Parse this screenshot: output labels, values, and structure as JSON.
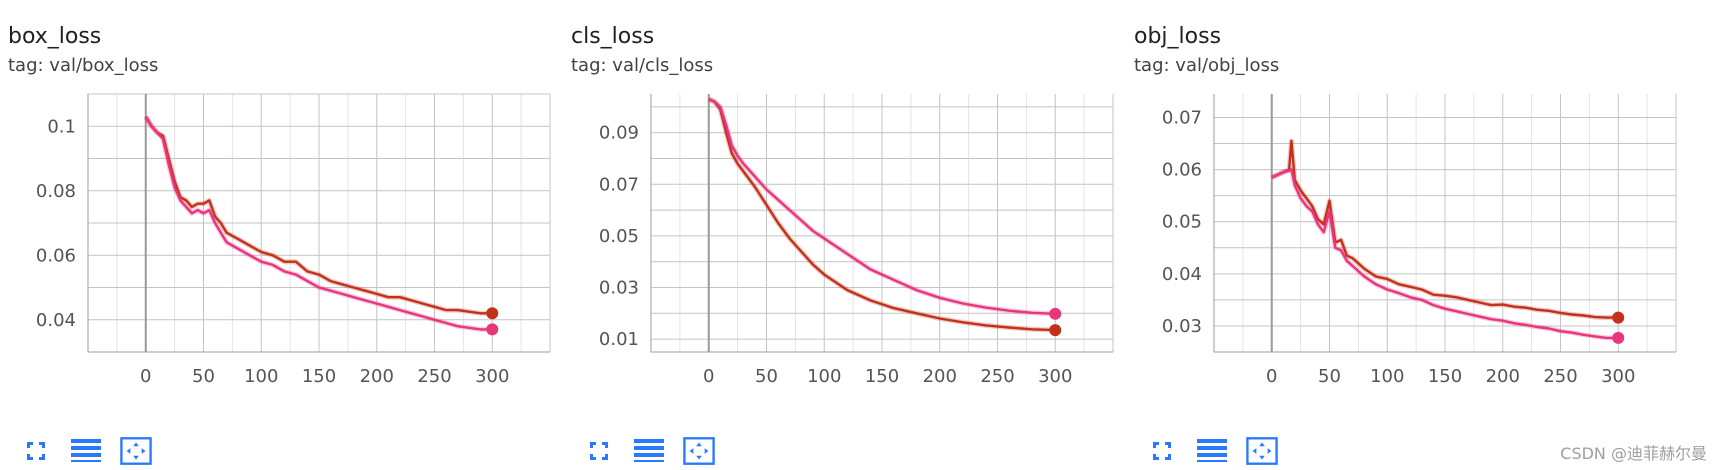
{
  "colors": {
    "accent": "#2979ff",
    "series_dark": "#c4311a",
    "series_pink": "#e8357c",
    "grid": "#c4c4c4",
    "axis_zero": "#999999"
  },
  "watermark": "CSDN @迪菲赫尔曼",
  "cards": [
    {
      "title": "box_loss",
      "tag": "tag: val/box_loss",
      "toolbar_icons": [
        "fullscreen-icon",
        "list-icon",
        "fit-domain-icon"
      ]
    },
    {
      "title": "cls_loss",
      "tag": "tag: val/cls_loss",
      "toolbar_icons": [
        "fullscreen-icon",
        "list-icon",
        "fit-domain-icon"
      ]
    },
    {
      "title": "obj_loss",
      "tag": "tag: val/obj_loss",
      "toolbar_icons": [
        "fullscreen-icon",
        "list-icon",
        "fit-domain-icon"
      ]
    }
  ],
  "chart_data": [
    {
      "type": "line",
      "title": "box_loss",
      "xlim": [
        -50,
        350
      ],
      "ylim": [
        0.03,
        0.11
      ],
      "xticks": [
        0,
        50,
        100,
        150,
        200,
        250,
        300
      ],
      "yticks": [
        0.04,
        0.06,
        0.08,
        0.1
      ],
      "ytick_labels": [
        "0.04",
        "0.06",
        "0.08",
        "0.1"
      ],
      "grid": true,
      "series": [
        {
          "color": "#c4311a",
          "x": [
            0,
            5,
            10,
            15,
            20,
            25,
            30,
            35,
            40,
            45,
            50,
            55,
            60,
            65,
            70,
            80,
            90,
            100,
            110,
            120,
            130,
            140,
            150,
            160,
            170,
            180,
            190,
            200,
            210,
            220,
            230,
            240,
            250,
            260,
            270,
            280,
            290,
            300
          ],
          "y": [
            0.103,
            0.1,
            0.098,
            0.097,
            0.09,
            0.083,
            0.078,
            0.077,
            0.075,
            0.076,
            0.076,
            0.077,
            0.072,
            0.07,
            0.067,
            0.065,
            0.063,
            0.061,
            0.06,
            0.058,
            0.058,
            0.055,
            0.054,
            0.052,
            0.051,
            0.05,
            0.049,
            0.048,
            0.047,
            0.047,
            0.046,
            0.045,
            0.044,
            0.043,
            0.043,
            0.0425,
            0.042,
            0.042
          ]
        },
        {
          "color": "#e8357c",
          "x": [
            0,
            5,
            10,
            15,
            20,
            25,
            30,
            35,
            40,
            45,
            50,
            55,
            60,
            65,
            70,
            80,
            90,
            100,
            110,
            120,
            130,
            140,
            150,
            160,
            170,
            180,
            190,
            200,
            210,
            220,
            230,
            240,
            250,
            260,
            270,
            280,
            290,
            300
          ],
          "y": [
            0.103,
            0.1,
            0.098,
            0.096,
            0.088,
            0.081,
            0.077,
            0.075,
            0.073,
            0.074,
            0.073,
            0.074,
            0.07,
            0.067,
            0.064,
            0.062,
            0.06,
            0.058,
            0.057,
            0.055,
            0.054,
            0.052,
            0.05,
            0.049,
            0.048,
            0.047,
            0.046,
            0.045,
            0.044,
            0.043,
            0.042,
            0.041,
            0.04,
            0.039,
            0.038,
            0.0375,
            0.037,
            0.037
          ]
        }
      ]
    },
    {
      "type": "line",
      "title": "cls_loss",
      "xlim": [
        -50,
        350
      ],
      "ylim": [
        0.005,
        0.105
      ],
      "xticks": [
        0,
        50,
        100,
        150,
        200,
        250,
        300
      ],
      "yticks": [
        0.01,
        0.03,
        0.05,
        0.07,
        0.09
      ],
      "ytick_labels": [
        "0.01",
        "0.03",
        "0.05",
        "0.07",
        "0.09"
      ],
      "grid": true,
      "series": [
        {
          "color": "#c4311a",
          "x": [
            0,
            5,
            10,
            15,
            20,
            25,
            30,
            40,
            50,
            60,
            70,
            80,
            90,
            100,
            120,
            140,
            160,
            180,
            200,
            220,
            240,
            260,
            280,
            300
          ],
          "y": [
            0.103,
            0.102,
            0.099,
            0.09,
            0.082,
            0.078,
            0.075,
            0.069,
            0.062,
            0.055,
            0.049,
            0.044,
            0.039,
            0.035,
            0.029,
            0.025,
            0.022,
            0.02,
            0.018,
            0.0165,
            0.0153,
            0.0145,
            0.0138,
            0.0135
          ]
        },
        {
          "color": "#e8357c",
          "x": [
            0,
            5,
            10,
            15,
            20,
            25,
            30,
            40,
            50,
            60,
            70,
            80,
            90,
            100,
            120,
            140,
            160,
            180,
            200,
            220,
            240,
            260,
            280,
            300
          ],
          "y": [
            0.103,
            0.102,
            0.1,
            0.093,
            0.085,
            0.081,
            0.078,
            0.073,
            0.068,
            0.064,
            0.06,
            0.056,
            0.052,
            0.049,
            0.043,
            0.037,
            0.033,
            0.029,
            0.026,
            0.0238,
            0.0222,
            0.021,
            0.0202,
            0.0198
          ]
        }
      ]
    },
    {
      "type": "line",
      "title": "obj_loss",
      "xlim": [
        -50,
        350
      ],
      "ylim": [
        0.025,
        0.0745
      ],
      "xticks": [
        0,
        50,
        100,
        150,
        200,
        250,
        300
      ],
      "yticks": [
        0.03,
        0.04,
        0.05,
        0.06,
        0.07
      ],
      "ytick_labels": [
        "0.03",
        "0.04",
        "0.05",
        "0.06",
        "0.07"
      ],
      "grid": true,
      "series": [
        {
          "color": "#c4311a",
          "x": [
            0,
            5,
            10,
            15,
            17,
            20,
            25,
            30,
            35,
            40,
            45,
            50,
            55,
            60,
            65,
            70,
            80,
            90,
            100,
            110,
            120,
            130,
            140,
            150,
            160,
            170,
            180,
            190,
            200,
            210,
            220,
            230,
            240,
            250,
            260,
            270,
            280,
            290,
            300
          ],
          "y": [
            0.0585,
            0.059,
            0.0595,
            0.06,
            0.0655,
            0.058,
            0.056,
            0.0545,
            0.053,
            0.0505,
            0.0495,
            0.054,
            0.046,
            0.0465,
            0.0435,
            0.043,
            0.041,
            0.0395,
            0.039,
            0.038,
            0.0375,
            0.037,
            0.036,
            0.0358,
            0.0355,
            0.035,
            0.0345,
            0.034,
            0.0341,
            0.0337,
            0.0335,
            0.0331,
            0.0329,
            0.0325,
            0.0322,
            0.032,
            0.0317,
            0.0316,
            0.0316
          ]
        },
        {
          "color": "#e8357c",
          "x": [
            0,
            5,
            10,
            15,
            17,
            20,
            25,
            30,
            35,
            40,
            45,
            50,
            55,
            60,
            65,
            70,
            80,
            90,
            100,
            110,
            120,
            130,
            140,
            150,
            160,
            170,
            180,
            190,
            200,
            210,
            220,
            230,
            240,
            250,
            260,
            270,
            280,
            290,
            300
          ],
          "y": [
            0.0585,
            0.059,
            0.0595,
            0.0598,
            0.06,
            0.057,
            0.0545,
            0.053,
            0.052,
            0.0495,
            0.048,
            0.052,
            0.045,
            0.0445,
            0.0425,
            0.0415,
            0.0395,
            0.038,
            0.037,
            0.0363,
            0.0355,
            0.035,
            0.034,
            0.0333,
            0.0328,
            0.0323,
            0.0318,
            0.0313,
            0.031,
            0.0305,
            0.0302,
            0.0298,
            0.0295,
            0.029,
            0.0287,
            0.0283,
            0.028,
            0.0277,
            0.0277
          ]
        }
      ]
    }
  ]
}
